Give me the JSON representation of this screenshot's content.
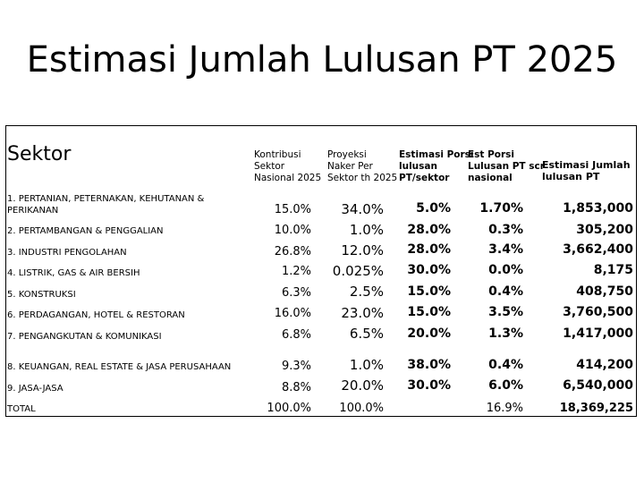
{
  "title": "Estimasi Jumlah Lulusan PT 2025",
  "table": {
    "sector_header": "Sektor",
    "column_headers": [
      [
        "Kontribusi",
        "Sektor",
        "Nasional 2025"
      ],
      [
        "Proyeksi",
        "Naker Per",
        "Sektor th 2025"
      ],
      [
        "Estimasi Porsi",
        "lulusan",
        "PT/sektor"
      ],
      [
        "Est Porsi",
        "Lulusan PT scr",
        "nasional"
      ],
      [
        "Estimasi Jumlah",
        "lulusan PT"
      ]
    ],
    "rows": [
      {
        "sector": "1. PERTANIAN, PETERNAKAN, KEHUTANAN & PERIKANAN",
        "kontribusi": "15.0%",
        "proyeksi": "34.0%",
        "porsi_lulusan": "5.0%",
        "porsi_nasional": "1.70%",
        "jumlah": "1,853,000"
      },
      {
        "sector": "2. PERTAMBANGAN & PENGGALIAN",
        "kontribusi": "10.0%",
        "proyeksi": "1.0%",
        "porsi_lulusan": "28.0%",
        "porsi_nasional": "0.3%",
        "jumlah": "305,200"
      },
      {
        "sector": "3. INDUSTRI PENGOLAHAN",
        "kontribusi": "26.8%",
        "proyeksi": "12.0%",
        "porsi_lulusan": "28.0%",
        "porsi_nasional": "3.4%",
        "jumlah": "3,662,400"
      },
      {
        "sector": "4. LISTRIK, GAS & AIR BERSIH",
        "kontribusi": "1.2%",
        "proyeksi": "0.025%",
        "porsi_lulusan": "30.0%",
        "porsi_nasional": "0.0%",
        "jumlah": "8,175"
      },
      {
        "sector": "5. KONSTRUKSI",
        "kontribusi": "6.3%",
        "proyeksi": "2.5%",
        "porsi_lulusan": "15.0%",
        "porsi_nasional": "0.4%",
        "jumlah": "408,750"
      },
      {
        "sector": "6. PERDAGANGAN, HOTEL & RESTORAN",
        "kontribusi": "16.0%",
        "proyeksi": "23.0%",
        "porsi_lulusan": "15.0%",
        "porsi_nasional": "3.5%",
        "jumlah": "3,760,500"
      },
      {
        "sector": "7. PENGANGKUTAN & KOMUNIKASI",
        "kontribusi": "6.8%",
        "proyeksi": "6.5%",
        "porsi_lulusan": "20.0%",
        "porsi_nasional": "1.3%",
        "jumlah": "1,417,000"
      },
      {
        "sector": "8.  KEUANGAN, REAL ESTATE & JASA PERUSAHAAN",
        "kontribusi": "9.3%",
        "proyeksi": "1.0%",
        "porsi_lulusan": "38.0%",
        "porsi_nasional": "0.4%",
        "jumlah": "414,200"
      },
      {
        "sector": "9. JASA-JASA",
        "kontribusi": "8.8%",
        "proyeksi": "20.0%",
        "porsi_lulusan": "30.0%",
        "porsi_nasional": "6.0%",
        "jumlah": "6,540,000"
      },
      {
        "sector": "TOTAL",
        "kontribusi": "100.0%",
        "proyeksi": "100.0%",
        "porsi_lulusan": "",
        "porsi_nasional": "16.9%",
        "jumlah": "18,369,225"
      }
    ]
  }
}
